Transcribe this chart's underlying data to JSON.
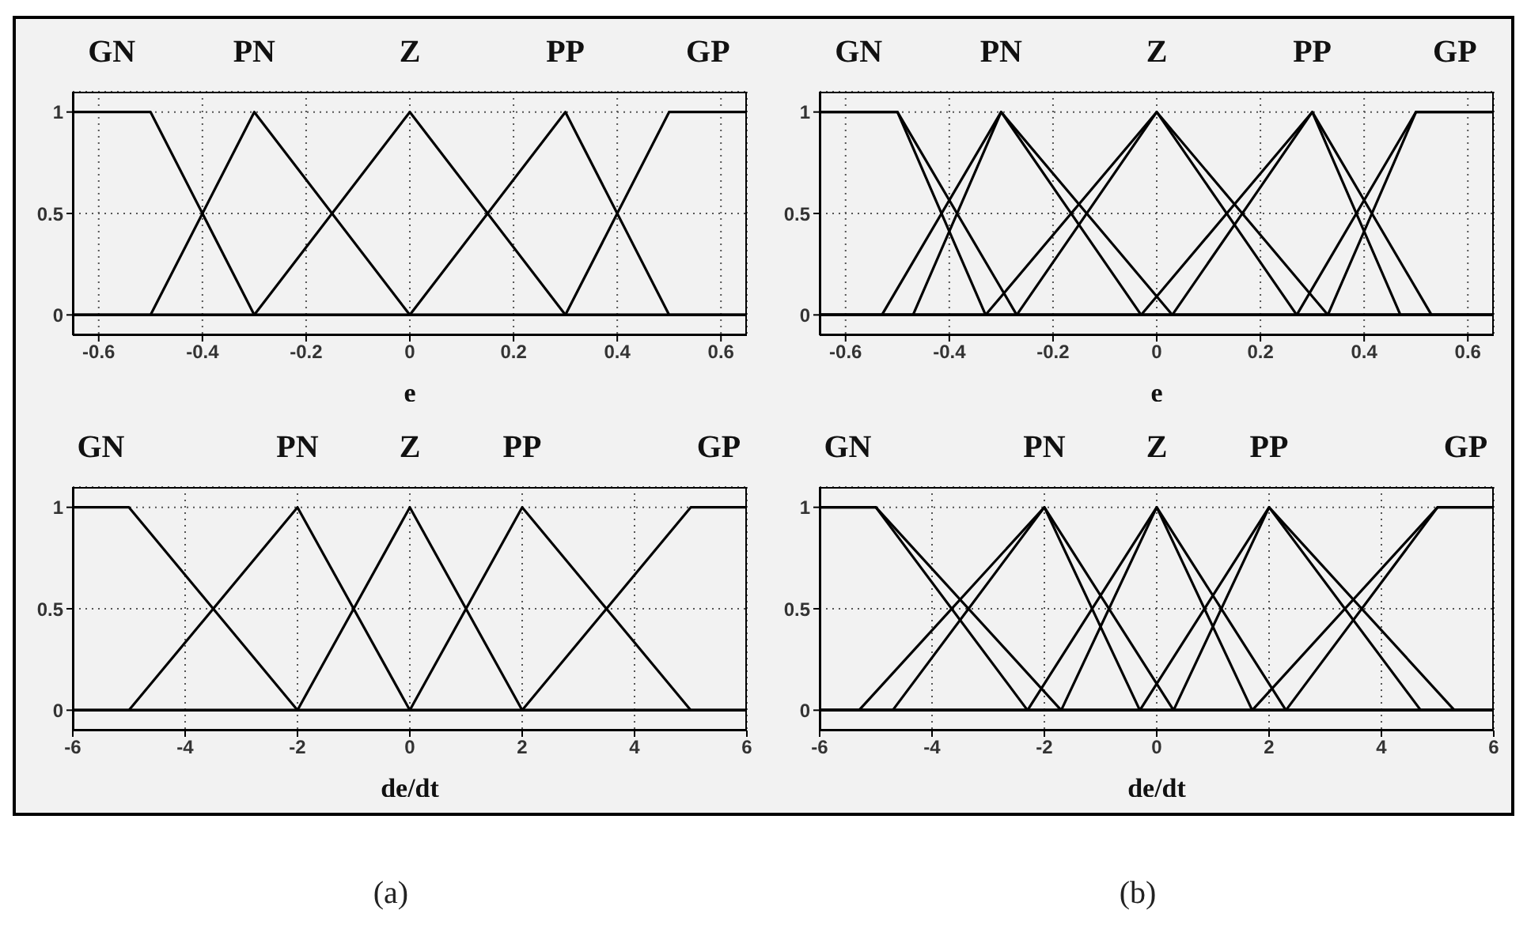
{
  "chart_data": [
    {
      "type": "line",
      "xlabel": "e",
      "xlim": [
        -0.65,
        0.65
      ],
      "xticks": [
        -0.6,
        -0.4,
        -0.2,
        0,
        0.2,
        0.4,
        0.6
      ],
      "ylim": [
        -0.1,
        1.1
      ],
      "yticks": [
        0,
        0.5,
        1
      ],
      "grid": true,
      "series": [
        {
          "name": "GN",
          "color": "#000000",
          "x": [
            -0.65,
            -0.5,
            -0.3,
            0.65
          ],
          "values": [
            1,
            1,
            0,
            0
          ]
        },
        {
          "name": "PN",
          "color": "#000000",
          "x": [
            -0.65,
            -0.5,
            -0.3,
            0,
            0.65
          ],
          "values": [
            0,
            0,
            1,
            0,
            0
          ]
        },
        {
          "name": "Z",
          "color": "#000000",
          "x": [
            -0.65,
            -0.3,
            0,
            0.3,
            0.65
          ],
          "values": [
            0,
            0,
            1,
            0,
            0
          ]
        },
        {
          "name": "PP",
          "color": "#000000",
          "x": [
            -0.65,
            0,
            0.3,
            0.5,
            0.65
          ],
          "values": [
            0,
            0,
            1,
            0,
            0
          ]
        },
        {
          "name": "GP",
          "color": "#000000",
          "x": [
            -0.65,
            0.3,
            0.5,
            0.65
          ],
          "values": [
            0,
            0,
            1,
            1
          ]
        }
      ]
    },
    {
      "type": "line",
      "xlabel": "e",
      "xlim": [
        -0.65,
        0.65
      ],
      "xticks": [
        -0.6,
        -0.4,
        -0.2,
        0,
        0.2,
        0.4,
        0.6
      ],
      "ylim": [
        -0.1,
        1.1
      ],
      "yticks": [
        0,
        0.5,
        1
      ],
      "grid": true,
      "series": [
        {
          "name": "GN",
          "color": "#000000",
          "x": [
            -0.65,
            -0.5,
            -0.27,
            0.65
          ],
          "values": [
            1,
            1,
            0,
            0
          ]
        },
        {
          "color": "#000000",
          "x": [
            -0.65,
            -0.5,
            -0.33,
            0.65
          ],
          "values": [
            1,
            1,
            0,
            0
          ]
        },
        {
          "name": "PN",
          "color": "#000000",
          "x": [
            -0.65,
            -0.53,
            -0.3,
            0.03,
            0.65
          ],
          "values": [
            0,
            0,
            1,
            0,
            0
          ]
        },
        {
          "color": "#000000",
          "x": [
            -0.65,
            -0.47,
            -0.3,
            -0.03,
            0.65
          ],
          "values": [
            0,
            0,
            1,
            0,
            0
          ]
        },
        {
          "name": "Z",
          "color": "#000000",
          "x": [
            -0.65,
            -0.33,
            0,
            0.33,
            0.65
          ],
          "values": [
            0,
            0,
            1,
            0,
            0
          ]
        },
        {
          "color": "#000000",
          "x": [
            -0.65,
            -0.27,
            0,
            0.27,
            0.65
          ],
          "values": [
            0,
            0,
            1,
            0,
            0
          ]
        },
        {
          "name": "PP",
          "color": "#000000",
          "x": [
            -0.65,
            -0.03,
            0.3,
            0.53,
            0.65
          ],
          "values": [
            0,
            0,
            1,
            0,
            0
          ]
        },
        {
          "color": "#000000",
          "x": [
            -0.65,
            0.03,
            0.3,
            0.47,
            0.65
          ],
          "values": [
            0,
            0,
            1,
            0,
            0
          ]
        },
        {
          "name": "GP",
          "color": "#000000",
          "x": [
            -0.65,
            0.27,
            0.5,
            0.65
          ],
          "values": [
            0,
            0,
            1,
            1
          ]
        },
        {
          "color": "#000000",
          "x": [
            -0.65,
            0.33,
            0.5,
            0.65
          ],
          "values": [
            0,
            0,
            1,
            1
          ]
        }
      ]
    },
    {
      "type": "line",
      "xlabel": "de/dt",
      "xlim": [
        -6,
        6
      ],
      "xticks": [
        -6,
        -4,
        -2,
        0,
        2,
        4,
        6
      ],
      "ylim": [
        -0.1,
        1.1
      ],
      "yticks": [
        0,
        0.5,
        1
      ],
      "grid": true,
      "annotations": [
        "(a)"
      ],
      "series": [
        {
          "name": "GN",
          "color": "#000000",
          "x": [
            -6,
            -5,
            -2,
            6
          ],
          "values": [
            1,
            1,
            0,
            0
          ]
        },
        {
          "name": "PN",
          "color": "#000000",
          "x": [
            -6,
            -5,
            -2,
            0,
            6
          ],
          "values": [
            0,
            0,
            1,
            0,
            0
          ]
        },
        {
          "name": "Z",
          "color": "#000000",
          "x": [
            -6,
            -2,
            0,
            2,
            6
          ],
          "values": [
            0,
            0,
            1,
            0,
            0
          ]
        },
        {
          "name": "PP",
          "color": "#000000",
          "x": [
            -6,
            0,
            2,
            5,
            6
          ],
          "values": [
            0,
            0,
            1,
            0,
            0
          ]
        },
        {
          "name": "GP",
          "color": "#000000",
          "x": [
            -6,
            2,
            5,
            6
          ],
          "values": [
            0,
            0,
            1,
            1
          ]
        }
      ]
    },
    {
      "type": "line",
      "xlabel": "de/dt",
      "xlim": [
        -6,
        6
      ],
      "xticks": [
        -6,
        -4,
        -2,
        0,
        2,
        4,
        6
      ],
      "ylim": [
        -0.1,
        1.1
      ],
      "yticks": [
        0,
        0.5,
        1
      ],
      "grid": true,
      "annotations": [
        "(b)"
      ],
      "series": [
        {
          "name": "GN",
          "color": "#000000",
          "x": [
            -6,
            -5,
            -1.7,
            6
          ],
          "values": [
            1,
            1,
            0,
            0
          ]
        },
        {
          "color": "#000000",
          "x": [
            -6,
            -5,
            -2.3,
            6
          ],
          "values": [
            1,
            1,
            0,
            0
          ]
        },
        {
          "name": "PN",
          "color": "#000000",
          "x": [
            -6,
            -5.3,
            -2,
            0.3,
            6
          ],
          "values": [
            0,
            0,
            1,
            0,
            0
          ]
        },
        {
          "color": "#000000",
          "x": [
            -6,
            -4.7,
            -2,
            -0.3,
            6
          ],
          "values": [
            0,
            0,
            1,
            0,
            0
          ]
        },
        {
          "name": "Z",
          "color": "#000000",
          "x": [
            -6,
            -2.3,
            0,
            2.3,
            6
          ],
          "values": [
            0,
            0,
            1,
            0,
            0
          ]
        },
        {
          "color": "#000000",
          "x": [
            -6,
            -1.7,
            0,
            1.7,
            6
          ],
          "values": [
            0,
            0,
            1,
            0,
            0
          ]
        },
        {
          "name": "PP",
          "color": "#000000",
          "x": [
            -6,
            -0.3,
            2,
            5.3,
            6
          ],
          "values": [
            0,
            0,
            1,
            0,
            0
          ]
        },
        {
          "color": "#000000",
          "x": [
            -6,
            0.3,
            2,
            4.7,
            6
          ],
          "values": [
            0,
            0,
            1,
            0,
            0
          ]
        },
        {
          "name": "GP",
          "color": "#000000",
          "x": [
            -6,
            1.7,
            5,
            6
          ],
          "values": [
            0,
            0,
            1,
            1
          ]
        },
        {
          "color": "#000000",
          "x": [
            -6,
            2.3,
            5,
            6
          ],
          "values": [
            0,
            0,
            1,
            1
          ]
        }
      ]
    }
  ]
}
